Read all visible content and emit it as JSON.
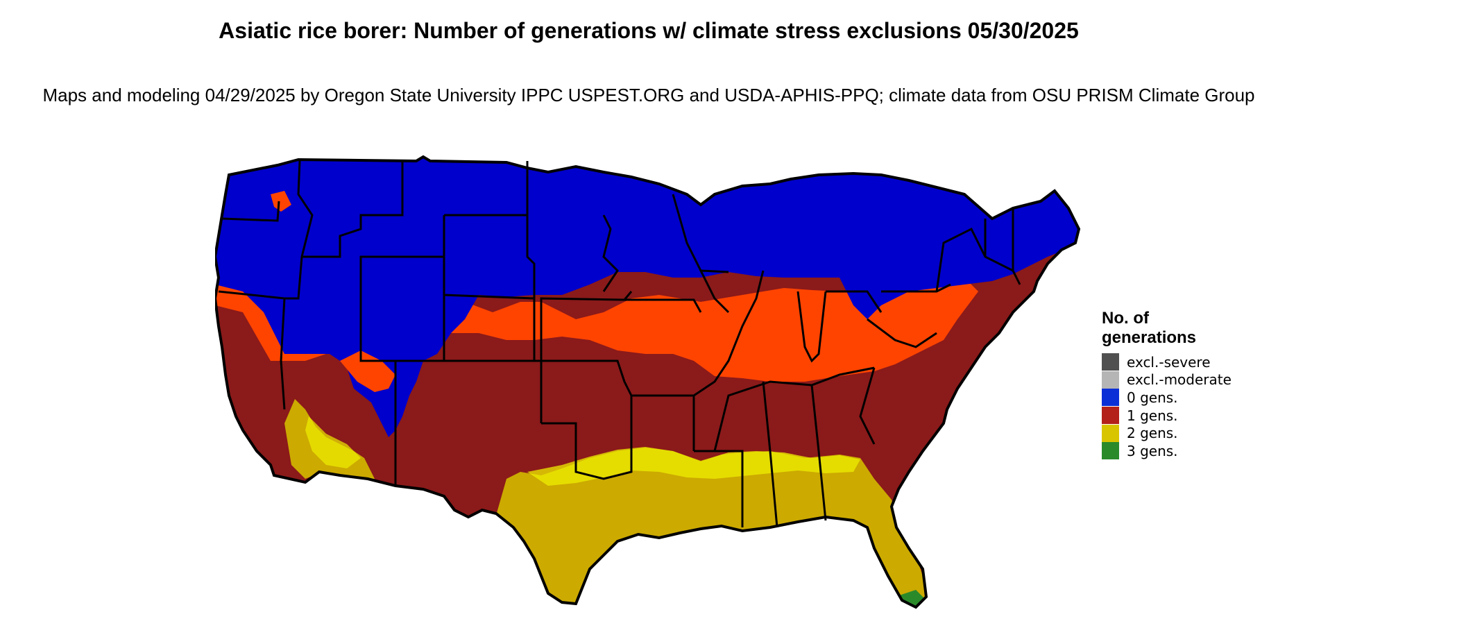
{
  "title": "Asiatic rice borer: Number of generations w/ climate stress exclusions 05/30/2025",
  "subtitle": "Maps and modeling 04/29/2025 by Oregon State University IPPC USPEST.ORG and USDA-APHIS-PPQ; climate data from OSU PRISM Climate Group",
  "legend": {
    "title": "No. of generations",
    "items": [
      {
        "label": "excl.-severe",
        "color": "#505050"
      },
      {
        "label": "excl.-moderate",
        "color": "#b5b5b5"
      },
      {
        "label": "0 gens.",
        "color": "#0a2fd6"
      },
      {
        "label": "1 gens.",
        "color": "#b3211a"
      },
      {
        "label": "2 gens.",
        "color": "#d9c400"
      },
      {
        "label": "3 gens.",
        "color": "#2a8a2a"
      }
    ]
  },
  "map_colors": {
    "zero_gens": "#0000cc",
    "one_gen": "#8b1a1a",
    "transition": "#ff4400",
    "two_gens": "#ccaa00",
    "two_gens_bright": "#eeee00",
    "three_gens": "#2a8a2a",
    "borders": "#000000"
  }
}
